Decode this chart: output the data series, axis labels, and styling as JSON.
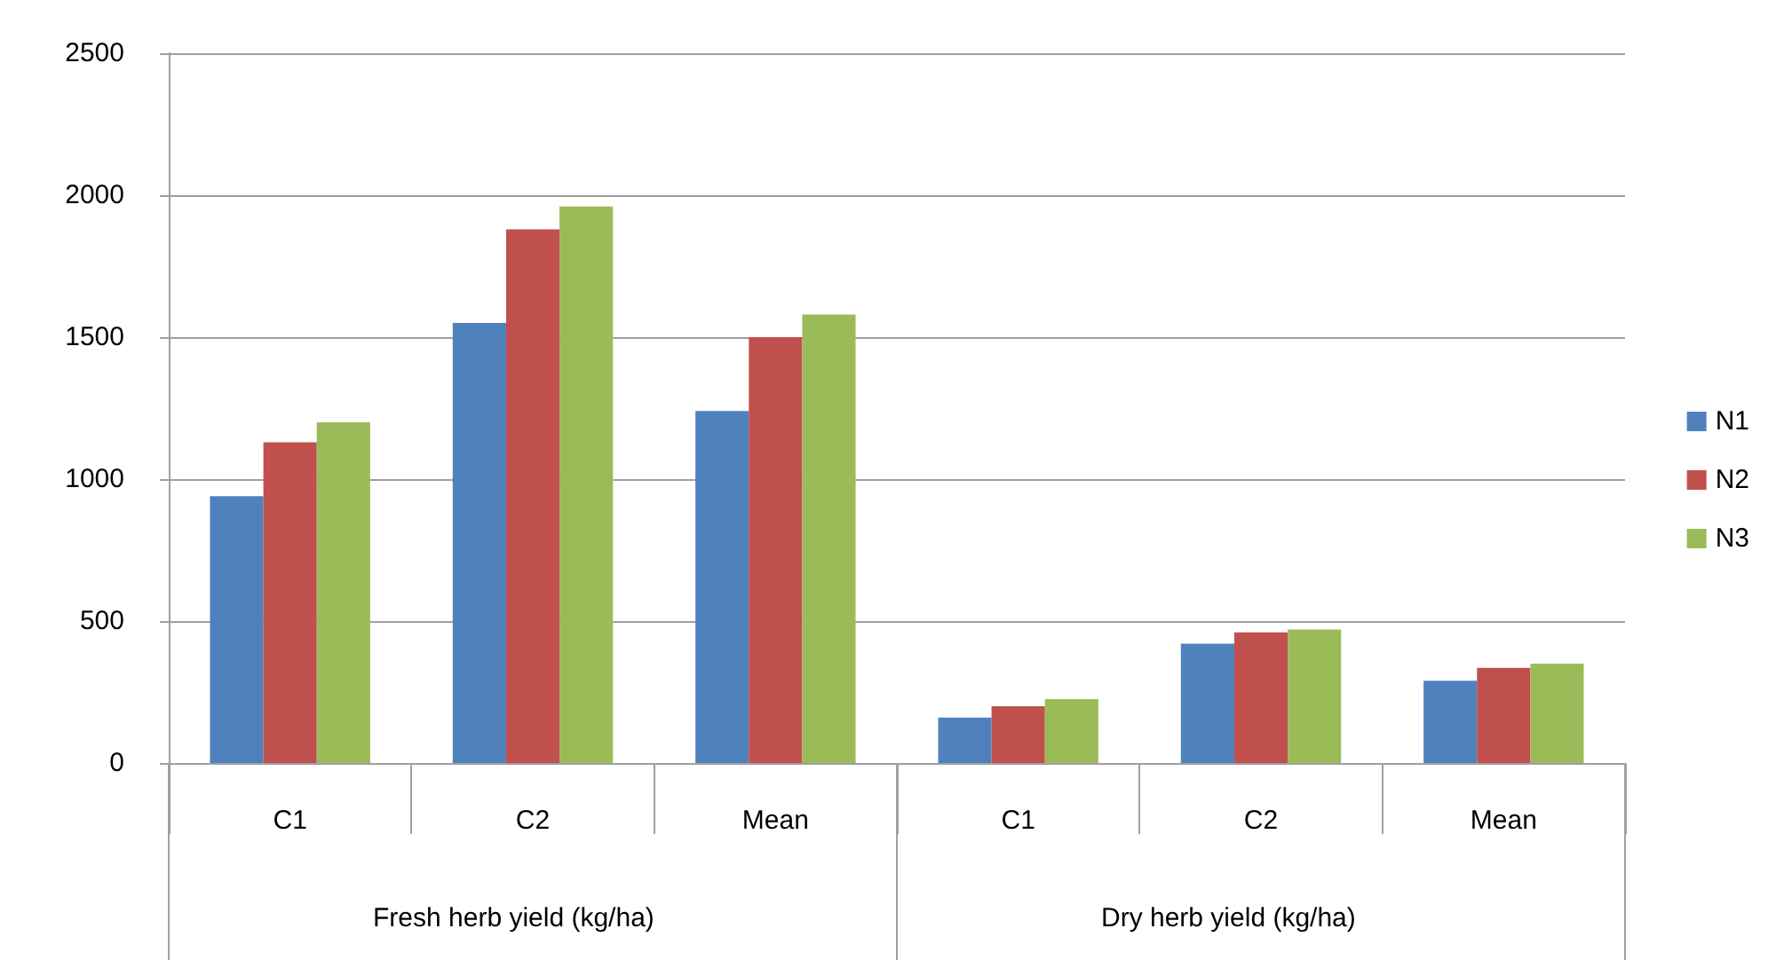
{
  "chart_data": {
    "type": "bar",
    "categories": [
      "C1",
      "C2",
      "Mean",
      "C1",
      "C2",
      "Mean"
    ],
    "series": [
      {
        "name": "N1",
        "color": "#4f81bd",
        "values": [
          940,
          1550,
          1240,
          160,
          420,
          290
        ]
      },
      {
        "name": "N2",
        "color": "#c0504d",
        "values": [
          1130,
          1880,
          1500,
          200,
          460,
          335
        ]
      },
      {
        "name": "N3",
        "color": "#9bbb59",
        "values": [
          1200,
          1960,
          1580,
          225,
          470,
          350
        ]
      }
    ],
    "annotations": [
      "Fresh herb yield (kg/ha)",
      "Dry herb yield (kg/ha)"
    ],
    "ylim": [
      0,
      2500
    ],
    "yticks": [
      0,
      500,
      1000,
      1500,
      2000,
      2500
    ],
    "grid": "y",
    "legend": "right"
  }
}
